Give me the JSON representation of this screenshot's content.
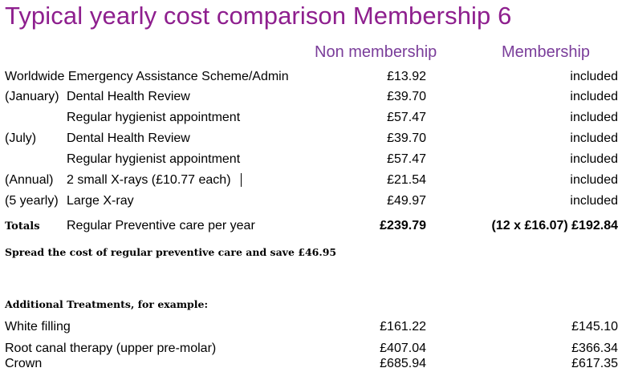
{
  "title": "Typical yearly cost comparison Membership 6",
  "headers": {
    "non_membership": "Non membership",
    "membership": "Membership"
  },
  "rows": [
    {
      "prefix": "",
      "description": "Worldwide Emergency Assistance Scheme/Admin",
      "non": "£13.92",
      "mem": "included"
    },
    {
      "prefix": "(January)",
      "description": "Dental Health Review",
      "non": "£39.70",
      "mem": "included"
    },
    {
      "prefix": "",
      "description": "Regular hygienist appointment",
      "non": "£57.47",
      "mem": "included"
    },
    {
      "prefix": "(July)",
      "description": "Dental Health Review",
      "non": "£39.70",
      "mem": "included"
    },
    {
      "prefix": "",
      "description": "Regular hygienist appointment",
      "non": "£57.47",
      "mem": "included"
    },
    {
      "prefix": "(Annual)",
      "description": "2 small X-rays (£10.77 each)",
      "non": "£21.54",
      "mem": "included"
    },
    {
      "prefix": "(5 yearly)",
      "description": "Large X-ray",
      "non": "£49.97",
      "mem": "included"
    }
  ],
  "totals": {
    "label": "Totals",
    "description": "Regular Preventive care per year",
    "non": "£239.79",
    "mem": "(12 x £16.07) £192.84"
  },
  "spread_note": "Spread the cost of regular preventive care and save £46.95",
  "additional_heading": "Additional Treatments, for example:",
  "additional": [
    {
      "description": "White filling",
      "non": "£161.22",
      "mem": "£145.10"
    },
    {
      "description": "Root canal therapy (upper pre-molar)",
      "non": "£407.04",
      "mem": "£366.34"
    },
    {
      "description": "Crown",
      "non": "£685.94",
      "mem": "£617.35"
    }
  ]
}
